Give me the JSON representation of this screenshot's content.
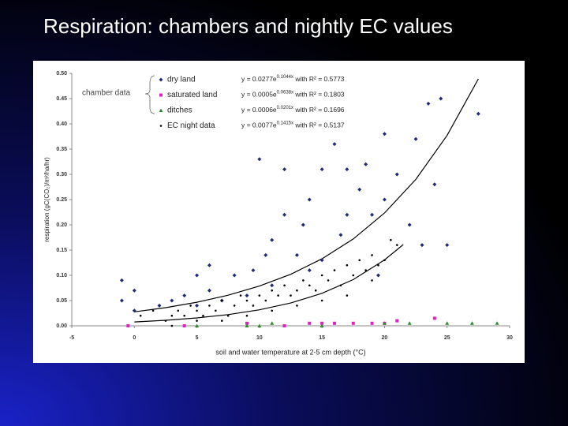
{
  "slide_title": "Respiration: chambers and nightly EC values",
  "chart_data": {
    "type": "scatter",
    "group_label": "chamber data",
    "xlabel": "soil and water temperature at 2-5 cm depth (°C)",
    "ylabel": "respiration (gC(CO₂)/m²/ha/hr)",
    "xlim": [
      -5,
      30
    ],
    "xticks": [
      -5,
      0,
      5,
      10,
      15,
      20,
      25,
      30
    ],
    "ylim": [
      0,
      0.5
    ],
    "yticks": [
      {
        "value": 0,
        "label": "0.00"
      },
      {
        "value": 0.05,
        "label": "0.05"
      },
      {
        "value": 0.1,
        "label": "0.10"
      },
      {
        "value": 0.15,
        "label": "0.15"
      },
      {
        "value": 0.2,
        "label": "0.20"
      },
      {
        "value": 0.25,
        "label": "0.25"
      },
      {
        "value": 0.3,
        "label": "0.30"
      },
      {
        "value": 0.35,
        "label": "0.35"
      },
      {
        "value": 0.4,
        "label": "0.40"
      },
      {
        "value": 0.45,
        "label": "0.45"
      },
      {
        "value": 0.5,
        "label": "0.50"
      }
    ],
    "grid": false,
    "series": [
      {
        "name": "dry land",
        "color": "#1f2a7a",
        "marker": "diamond",
        "equation": "y = 0.0277e",
        "exponent": "0.1044x",
        "r_squared": " with R² = 0.5773",
        "x": [
          -1,
          -1,
          0,
          0,
          2,
          3,
          4,
          5,
          5,
          6,
          6,
          7,
          8,
          9,
          9.5,
          10,
          10.5,
          11,
          11,
          12,
          12,
          13,
          13.5,
          14,
          14,
          15,
          15,
          16,
          16.5,
          17,
          17,
          18,
          18.5,
          19,
          19.5,
          20,
          20,
          21,
          22,
          22.5,
          23,
          23.5,
          24,
          24.5,
          25,
          27.5
        ],
        "values": [
          0.09,
          0.05,
          0.07,
          0.03,
          0.04,
          0.05,
          0.06,
          0.1,
          0.04,
          0.07,
          0.12,
          0.05,
          0.1,
          0.06,
          0.11,
          0.33,
          0.14,
          0.17,
          0.08,
          0.31,
          0.22,
          0.14,
          0.2,
          0.25,
          0.11,
          0.13,
          0.31,
          0.36,
          0.18,
          0.31,
          0.22,
          0.27,
          0.32,
          0.22,
          0.1,
          0.38,
          0.25,
          0.3,
          0.2,
          0.37,
          0.16,
          0.44,
          0.28,
          0.45,
          0.16,
          0.42
        ]
      },
      {
        "name": "saturated land",
        "color": "#e020c0",
        "marker": "square",
        "equation": "y = 0.0005e",
        "exponent": "0.0638x",
        "r_squared": " with R² = 0.1803",
        "x": [
          -0.5,
          4,
          9,
          12,
          14,
          15,
          16,
          17.5,
          19,
          20,
          21,
          24
        ],
        "values": [
          0,
          0,
          0.005,
          0,
          0.005,
          0.005,
          0.005,
          0.005,
          0.005,
          0.005,
          0.01,
          0.015
        ]
      },
      {
        "name": "ditches",
        "color": "#2e8b2e",
        "marker": "triangle",
        "equation": "y = 0.0006e",
        "exponent": "0.0201x",
        "r_squared": " with R² = 0.1696",
        "x": [
          5,
          9,
          10,
          11,
          15,
          20,
          22,
          25,
          27,
          29
        ],
        "values": [
          0,
          0,
          0,
          0.005,
          0,
          0.005,
          0.005,
          0.005,
          0.005,
          0.005
        ]
      },
      {
        "name": "EC night data",
        "color": "#000000",
        "marker": "dot",
        "equation": "y = 0.0077e",
        "exponent": "0.1415x",
        "r_squared": " with R² = 0.5137",
        "x": [
          0.5,
          1.5,
          2.5,
          3,
          3.5,
          4,
          4.5,
          5,
          5.5,
          6,
          6.5,
          7,
          7.5,
          8,
          8.5,
          9,
          9.5,
          10,
          10.5,
          11,
          11.5,
          12,
          12.5,
          13,
          13.5,
          14,
          14.5,
          15,
          15.5,
          16,
          16.5,
          17,
          17.5,
          18,
          18.5,
          19,
          19.5,
          20,
          20.5,
          21,
          3,
          5,
          7,
          9,
          11,
          13,
          15,
          17,
          19
        ],
        "values": [
          0.02,
          0.03,
          0.01,
          0.02,
          0.03,
          0.02,
          0.04,
          0.03,
          0.02,
          0.04,
          0.03,
          0.05,
          0.02,
          0.04,
          0.06,
          0.05,
          0.04,
          0.06,
          0.05,
          0.07,
          0.06,
          0.08,
          0.06,
          0.07,
          0.09,
          0.08,
          0.07,
          0.1,
          0.09,
          0.11,
          0.08,
          0.12,
          0.1,
          0.13,
          0.11,
          0.14,
          0.12,
          0.13,
          0.17,
          0.16,
          0,
          0.01,
          0.01,
          0.02,
          0.03,
          0.04,
          0.05,
          0.06,
          0.09
        ]
      }
    ],
    "fits": [
      {
        "color": "#000000",
        "x": [
          0,
          2.5,
          5,
          7.5,
          10,
          12.5,
          15,
          17.5,
          20,
          22.5,
          25,
          27.5
        ],
        "values": [
          0.0277,
          0.036,
          0.0467,
          0.0606,
          0.0787,
          0.102,
          0.1326,
          0.172,
          0.2235,
          0.29,
          0.377,
          0.489
        ]
      },
      {
        "color": "#000000",
        "x": [
          0,
          2.5,
          5,
          7.5,
          10,
          12.5,
          15,
          17.5,
          20,
          21.5
        ],
        "values": [
          0.0077,
          0.011,
          0.0156,
          0.0222,
          0.0317,
          0.0451,
          0.0643,
          0.0916,
          0.1305,
          0.161
        ]
      }
    ]
  }
}
